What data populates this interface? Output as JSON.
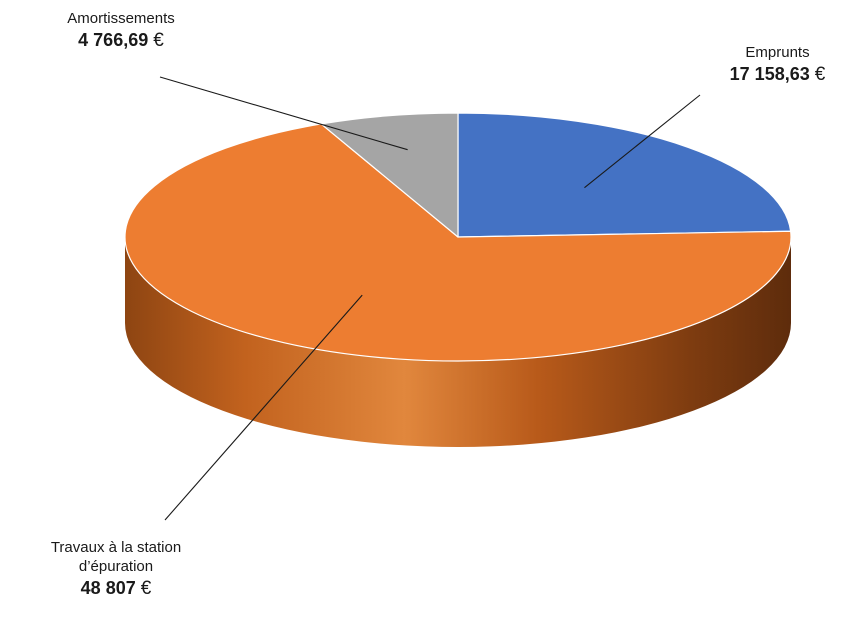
{
  "chart_data": {
    "type": "pie",
    "title": "",
    "currency_symbol": "€",
    "slices": [
      {
        "label": "Emprunts",
        "value": 17158.63,
        "value_text": "17 158,63",
        "color": "#4472C4"
      },
      {
        "label": "Travaux à la station d’épuration",
        "label_lines": [
          "Travaux à la station",
          "d’épuration"
        ],
        "value": 48807,
        "value_text": "48 807",
        "color": "#ED7D31"
      },
      {
        "label": "Amortissements",
        "value": 4766.69,
        "value_text": "4 766,69",
        "color": "#A5A5A5"
      }
    ]
  }
}
